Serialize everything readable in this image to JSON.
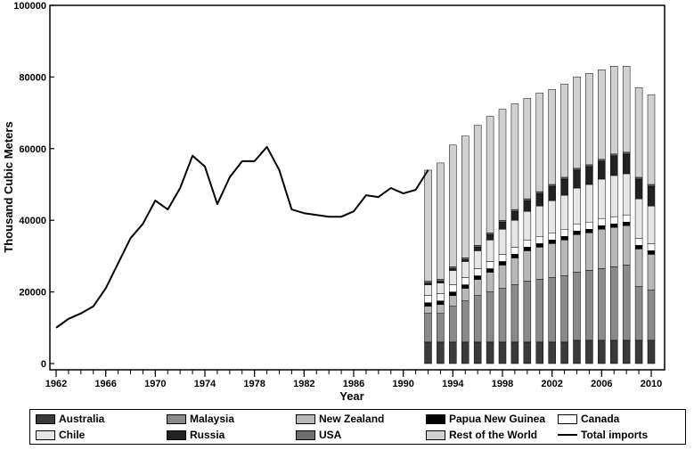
{
  "chart_data": {
    "type": "bar",
    "title": "",
    "xlabel": "Year",
    "ylabel": "Thousand Cubic Meters",
    "ylim": [
      0,
      100000
    ],
    "xlim": [
      1962,
      2010
    ],
    "y_ticks": [
      "0",
      "20000",
      "40000",
      "60000",
      "80000",
      "100000"
    ],
    "x_ticks": [
      "1962",
      "1966",
      "1970",
      "1974",
      "1978",
      "1982",
      "1986",
      "1990",
      "1994",
      "1998",
      "2002",
      "2006",
      "2010"
    ],
    "line_series": {
      "name": "Total imports",
      "x": [
        1962,
        1963,
        1964,
        1965,
        1966,
        1967,
        1968,
        1969,
        1970,
        1971,
        1972,
        1973,
        1974,
        1975,
        1976,
        1977,
        1978,
        1979,
        1980,
        1981,
        1982,
        1983,
        1984,
        1985,
        1986,
        1987,
        1988,
        1989,
        1990,
        1991,
        1992
      ],
      "values": [
        10000,
        12500,
        14000,
        16000,
        21000,
        28000,
        35000,
        39000,
        45500,
        43000,
        49000,
        58000,
        55000,
        44500,
        52000,
        56500,
        56500,
        60500,
        54000,
        43000,
        42000,
        41500,
        41000,
        41000,
        42500,
        47000,
        46500,
        49000,
        47500,
        48500,
        54000
      ]
    },
    "categories": [
      "1992",
      "1993",
      "1994",
      "1995",
      "1996",
      "1997",
      "1998",
      "1999",
      "2000",
      "2001",
      "2002",
      "2003",
      "2004",
      "2005",
      "2006",
      "2007",
      "2008",
      "2009",
      "2010"
    ],
    "series": [
      {
        "name": "Australia",
        "color": "#3a3a3a",
        "values": [
          6000,
          6000,
          6000,
          6000,
          6000,
          6000,
          6000,
          6000,
          6000,
          6000,
          6000,
          6000,
          6500,
          6500,
          6500,
          6500,
          6500,
          6500,
          6500
        ]
      },
      {
        "name": "Malaysia",
        "color": "#8a8a8a",
        "values": [
          8000,
          8000,
          10000,
          11500,
          13000,
          14000,
          15000,
          16000,
          17000,
          17500,
          18000,
          18500,
          19000,
          19500,
          20000,
          20500,
          21000,
          15000,
          14000
        ]
      },
      {
        "name": "New Zealand",
        "color": "#b8b8b8",
        "values": [
          2000,
          2500,
          3000,
          3500,
          4500,
          5500,
          6500,
          7500,
          8500,
          9000,
          9500,
          10000,
          10500,
          10500,
          11000,
          11000,
          11000,
          10500,
          10000
        ]
      },
      {
        "name": "Papua New Guinea",
        "color": "#000000",
        "values": [
          1000,
          1000,
          1000,
          1000,
          1000,
          1000,
          1000,
          1000,
          1000,
          1000,
          1000,
          1000,
          1000,
          1000,
          1000,
          1000,
          1000,
          1000,
          1000
        ]
      },
      {
        "name": "Canada",
        "color": "#ffffff",
        "values": [
          2000,
          2000,
          2000,
          2000,
          2000,
          2000,
          2000,
          2000,
          2000,
          2000,
          2000,
          2000,
          2000,
          2000,
          2000,
          2000,
          2000,
          2000,
          2000
        ]
      },
      {
        "name": "Chile",
        "color": "#e6e6e6",
        "values": [
          3000,
          3000,
          4000,
          4500,
          5000,
          6000,
          7000,
          7500,
          8000,
          8500,
          9000,
          9500,
          10000,
          10500,
          11000,
          11500,
          11500,
          11000,
          10500
        ]
      },
      {
        "name": "Russia",
        "color": "#222222",
        "values": [
          500,
          500,
          500,
          500,
          1000,
          1500,
          2000,
          2500,
          3000,
          3500,
          4000,
          4500,
          5000,
          5000,
          5000,
          5500,
          5500,
          5500,
          5500
        ]
      },
      {
        "name": "USA",
        "color": "#6e6e6e",
        "values": [
          500,
          500,
          500,
          500,
          500,
          500,
          500,
          500,
          500,
          500,
          500,
          500,
          500,
          500,
          500,
          500,
          500,
          500,
          500
        ]
      },
      {
        "name": "Rest of the World",
        "color": "#d0d0d0",
        "values": [
          31000,
          32500,
          34000,
          34000,
          33500,
          32500,
          31000,
          29500,
          28000,
          27500,
          26500,
          26000,
          25500,
          25500,
          25000,
          24500,
          24000,
          25000,
          25000
        ]
      }
    ],
    "legend_position": "bottom"
  }
}
